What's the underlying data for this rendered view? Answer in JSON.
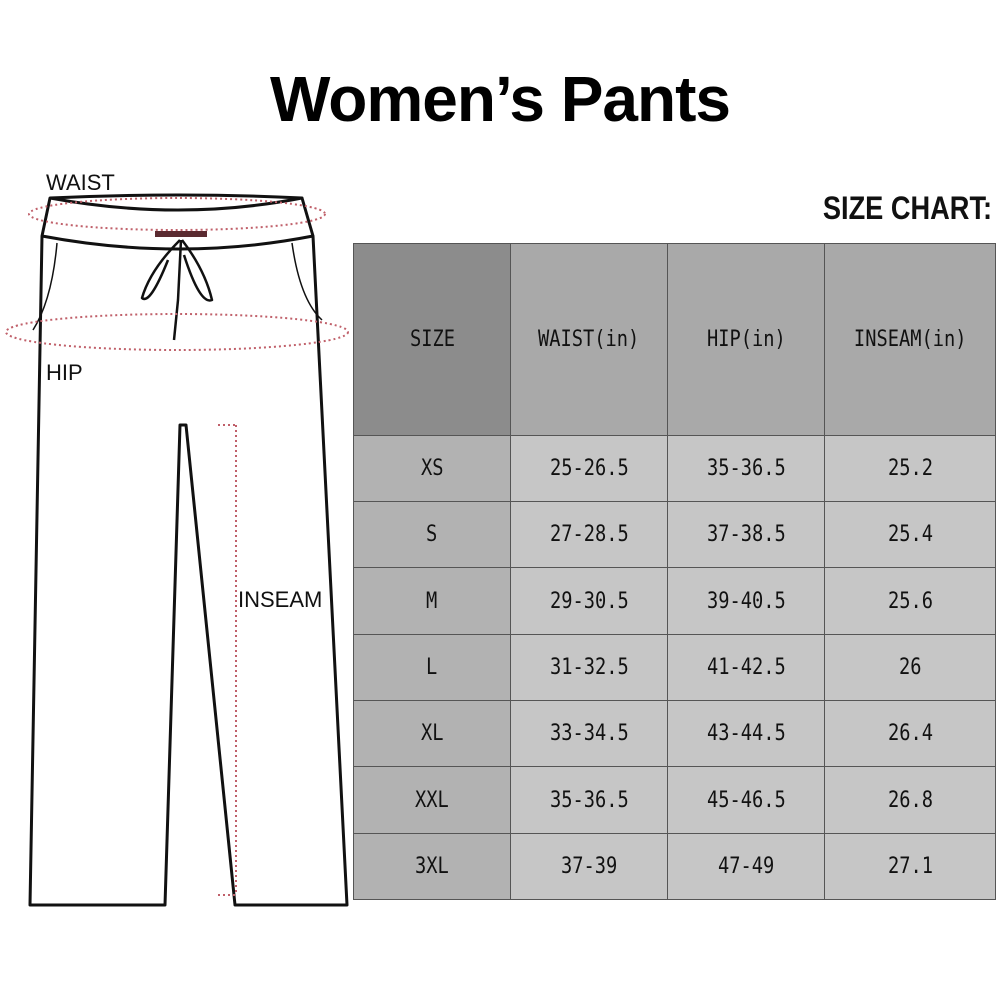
{
  "title": "Women’s Pants",
  "chart_label": "SIZE CHART:",
  "diagram": {
    "waist": "WAIST",
    "hip": "HIP",
    "inseam": "INSEAM"
  },
  "table": {
    "headers": [
      "SIZE",
      "WAIST(in)",
      "HIP(in)",
      "INSEAM(in)"
    ],
    "rows": [
      [
        "XS",
        "25-26.5",
        "35-36.5",
        "25.2"
      ],
      [
        "S",
        "27-28.5",
        "37-38.5",
        "25.4"
      ],
      [
        "M",
        "29-30.5",
        "39-40.5",
        "25.6"
      ],
      [
        "L",
        "31-32.5",
        "41-42.5",
        "26"
      ],
      [
        "XL",
        "33-34.5",
        "43-44.5",
        "26.4"
      ],
      [
        "XXL",
        "35-36.5",
        "45-46.5",
        "26.8"
      ],
      [
        "3XL",
        "37-39",
        "47-49",
        "27.1"
      ]
    ]
  },
  "colors": {
    "header_size": "#8c8c8c",
    "header": "#a9a9a9",
    "size_col": "#b2b2b2",
    "cell": "#c6c6c6",
    "measure_line": "#c0606a"
  }
}
